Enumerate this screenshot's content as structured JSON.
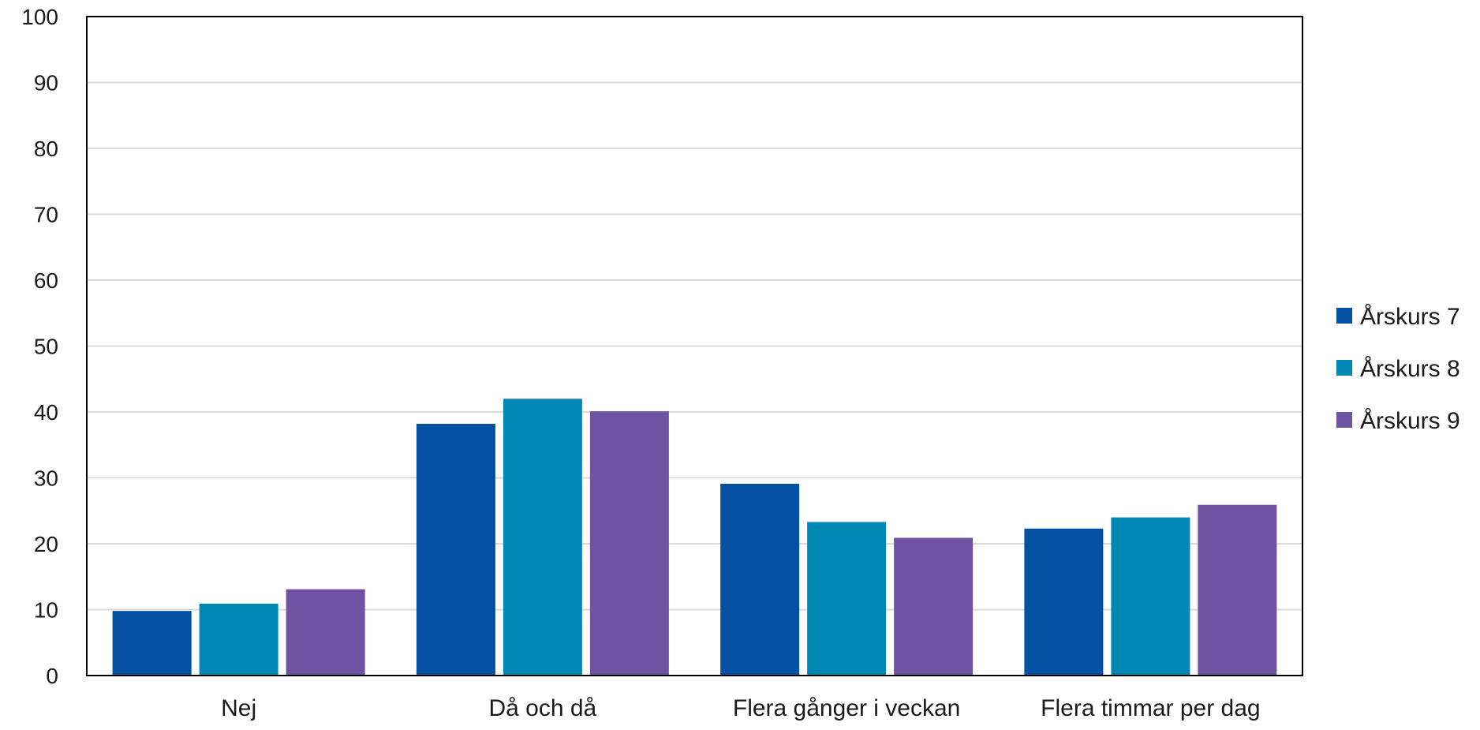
{
  "chart_data": {
    "type": "bar",
    "title": "",
    "xlabel": "",
    "ylabel": "",
    "ylim": [
      0,
      100
    ],
    "yticks": [
      0,
      10,
      20,
      30,
      40,
      50,
      60,
      70,
      80,
      90,
      100
    ],
    "grid": true,
    "legend_position": "right",
    "categories": [
      "Nej",
      "Då och då",
      "Flera gånger i veckan",
      "Flera timmar per dag"
    ],
    "series": [
      {
        "name": "Årskurs 7",
        "color": "#0450a3",
        "values": [
          9.8,
          38.2,
          29.1,
          22.3
        ]
      },
      {
        "name": "Årskurs 8",
        "color": "#0088b5",
        "values": [
          10.9,
          42.0,
          23.3,
          24.0
        ]
      },
      {
        "name": "Årskurs 9",
        "color": "#6f52a1",
        "values": [
          13.1,
          40.1,
          20.9,
          25.9
        ]
      }
    ]
  }
}
